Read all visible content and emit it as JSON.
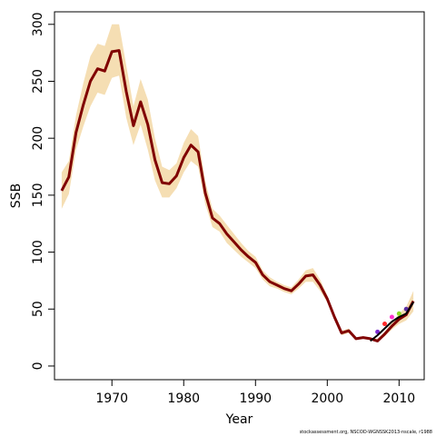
{
  "chart_data": {
    "type": "line",
    "title": "",
    "xlabel": "Year",
    "ylabel": "SSB",
    "xlim": [
      1962,
      2013.5
    ],
    "ylim": [
      -12,
      311
    ],
    "x_ticks": [
      1970,
      1980,
      1990,
      2000,
      2010
    ],
    "y_ticks": [
      0,
      50,
      100,
      150,
      200,
      250,
      300
    ],
    "grid": false,
    "legend": "none",
    "series": [
      {
        "role": "estimate",
        "color": "#800000",
        "x": [
          1963,
          1964,
          1965,
          1966,
          1967,
          1968,
          1969,
          1970,
          1971,
          1972,
          1973,
          1974,
          1975,
          1976,
          1977,
          1978,
          1979,
          1980,
          1981,
          1982,
          1983,
          1984,
          1985,
          1986,
          1987,
          1988,
          1989,
          1990,
          1991,
          1992,
          1993,
          1994,
          1995,
          1996,
          1997,
          1998,
          1999,
          2000,
          2001,
          2002,
          2003,
          2004,
          2005,
          2006,
          2007,
          2008,
          2009,
          2010,
          2011,
          2012
        ],
        "y": [
          154,
          166,
          205,
          229,
          250,
          261,
          259,
          276,
          277,
          241,
          211,
          232,
          212,
          181,
          161,
          160,
          167,
          183,
          194,
          188,
          152,
          130,
          125,
          116,
          109,
          102,
          96,
          91,
          80,
          74,
          71,
          68,
          66,
          72,
          79,
          80,
          71,
          59,
          43,
          29,
          31,
          24,
          25,
          24,
          22,
          28,
          35,
          41,
          45,
          57
        ]
      },
      {
        "role": "confidence_band",
        "color": "#f5deb3",
        "x": [
          1963,
          1964,
          1965,
          1966,
          1967,
          1968,
          1969,
          1970,
          1971,
          1972,
          1973,
          1974,
          1975,
          1976,
          1977,
          1978,
          1979,
          1980,
          1981,
          1982,
          1983,
          1984,
          1985,
          1986,
          1987,
          1988,
          1989,
          1990,
          1991,
          1992,
          1993,
          1994,
          1995,
          1996,
          1997,
          1998,
          1999,
          2000,
          2001,
          2002,
          2003,
          2004,
          2005,
          2006,
          2007,
          2008,
          2009,
          2010,
          2011,
          2012
        ],
        "upper": [
          170,
          180,
          220,
          248,
          272,
          283,
          281,
          300,
          300,
          264,
          228,
          252,
          234,
          200,
          175,
          172,
          178,
          196,
          208,
          202,
          162,
          138,
          132,
          124,
          116,
          108,
          101,
          96,
          84,
          78,
          74,
          71,
          69,
          76,
          84,
          86,
          76,
          62,
          45,
          31,
          33,
          25,
          26,
          25,
          24,
          30,
          38,
          46,
          52,
          66
        ],
        "lower": [
          138,
          151,
          190,
          210,
          228,
          240,
          238,
          253,
          255,
          218,
          194,
          212,
          190,
          163,
          148,
          148,
          156,
          170,
          180,
          175,
          142,
          122,
          118,
          108,
          102,
          96,
          91,
          86,
          76,
          70,
          68,
          65,
          63,
          68,
          74,
          74,
          66,
          56,
          41,
          27,
          29,
          23,
          24,
          23,
          21,
          26,
          32,
          37,
          40,
          48
        ]
      },
      {
        "role": "retrospective_peels",
        "points": [
          {
            "x": 2007,
            "y": 30,
            "color": "#7b2bd0"
          },
          {
            "x": 2008,
            "y": 37,
            "color": "#ff2a2a"
          },
          {
            "x": 2009,
            "y": 43,
            "color": "#ff33cc"
          },
          {
            "x": 2010,
            "y": 46,
            "color": "#88dd22"
          },
          {
            "x": 2011,
            "y": 50,
            "color": "#5a2fa0"
          }
        ]
      },
      {
        "role": "retrospective_line",
        "color": "#000000",
        "x": [
          2006,
          2007,
          2008,
          2009,
          2010,
          2011,
          2012
        ],
        "y": [
          22,
          27,
          33,
          39,
          43,
          46,
          56
        ]
      }
    ],
    "footer": "stockassessment.org, NSCOD-WGNSSK2013-nscale, r1988"
  }
}
